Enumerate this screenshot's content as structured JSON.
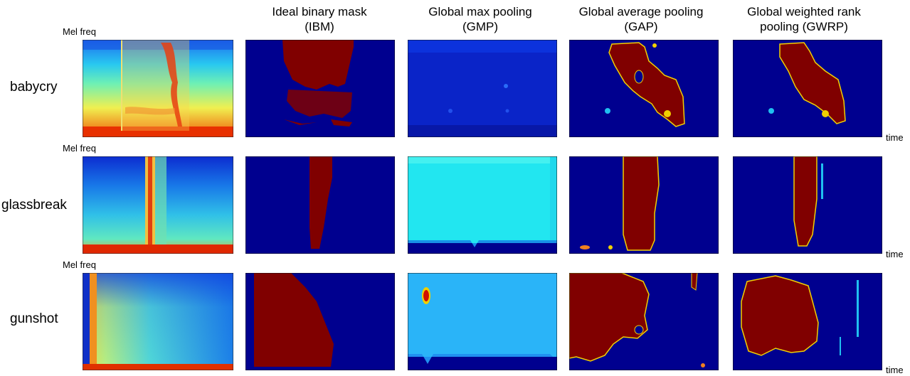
{
  "columns": [
    {
      "line1": "Ideal binary mask",
      "line2": "(IBM)"
    },
    {
      "line1": "Global max pooling",
      "line2": "(GMP)"
    },
    {
      "line1": "Global average pooling",
      "line2": "(GAP)"
    },
    {
      "line1": "Global weighted rank",
      "line2": "pooling (GWRP)"
    }
  ],
  "rows": [
    {
      "label": "babycry",
      "ylabel": "Mel freq",
      "xlabel": "time"
    },
    {
      "label": "glassbreak",
      "ylabel": "Mel freq",
      "xlabel": "time"
    },
    {
      "label": "gunshot",
      "ylabel": "Mel freq",
      "xlabel": "time"
    }
  ],
  "colors": {
    "navy": "#00008f",
    "maroon": "#800000",
    "red": "#d01000",
    "yellow": "#ffff00",
    "cyan": "#22e6f0",
    "light_blue": "#2ab4f8",
    "blue": "#0c2fe0"
  }
}
